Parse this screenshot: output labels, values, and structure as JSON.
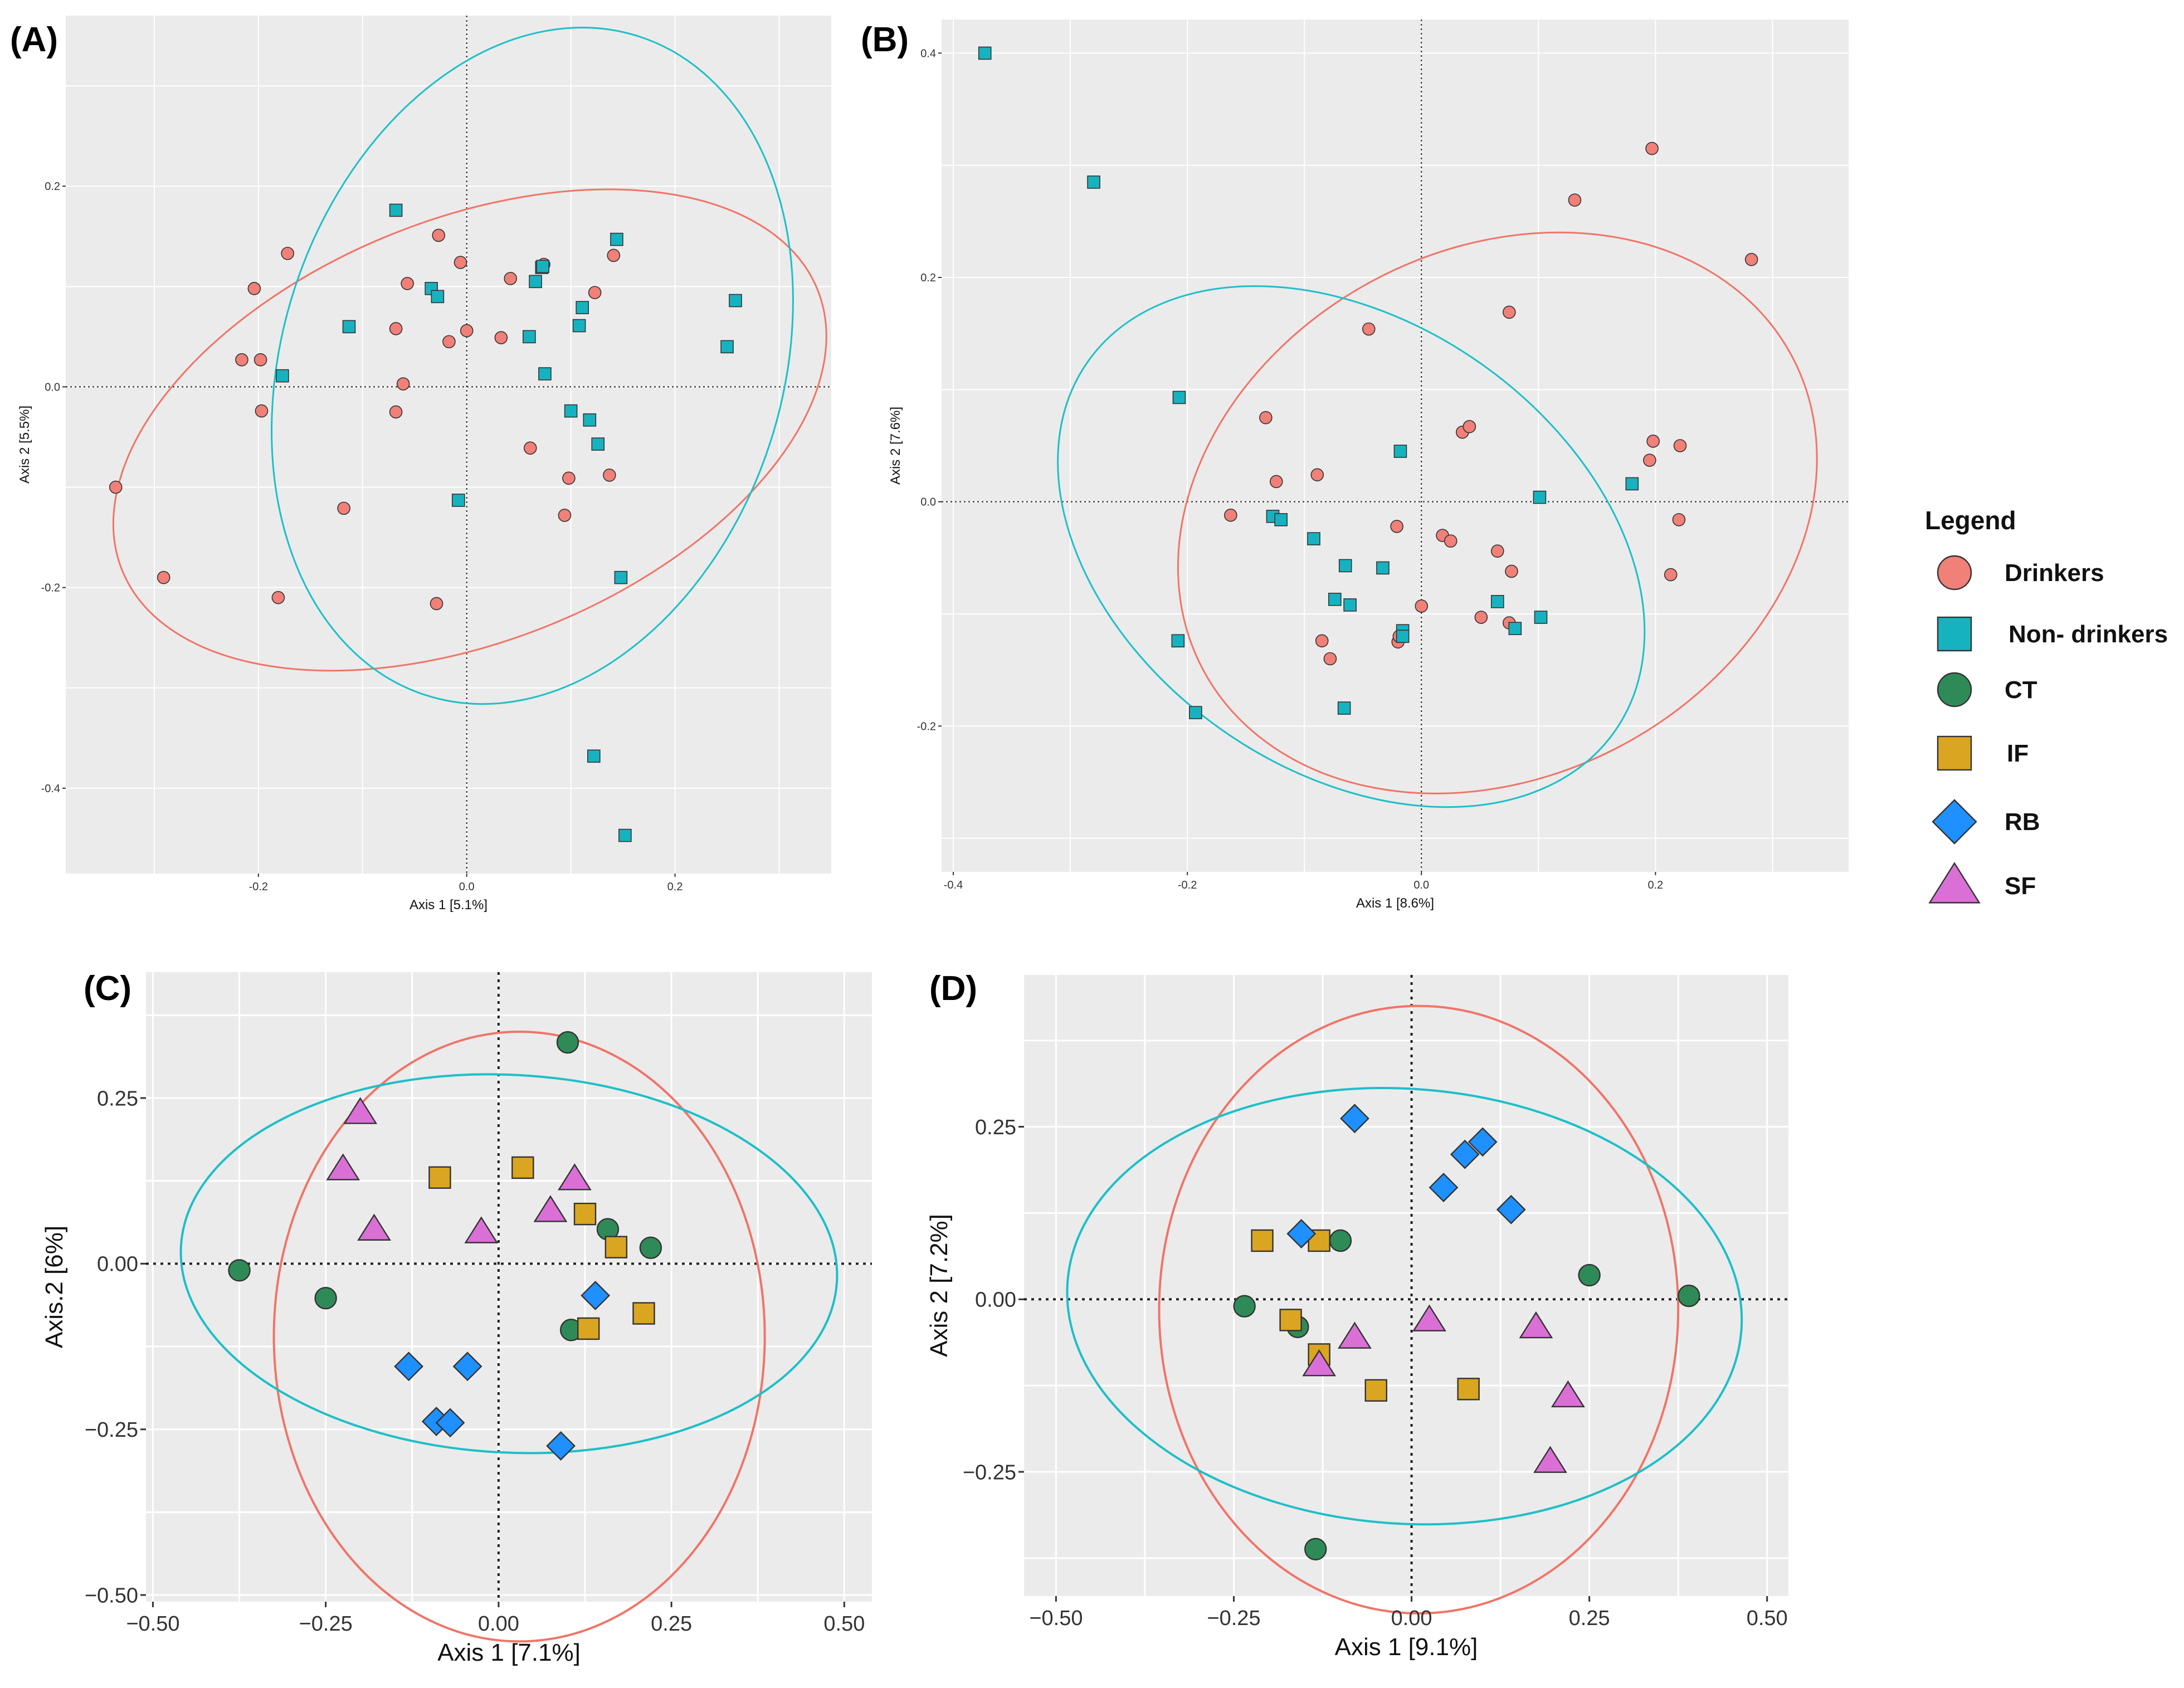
{
  "colors": {
    "panel_bg": "#ebebeb",
    "grid": "#ffffff",
    "drinkers": "#f08078",
    "drinkers_ellipse": "#f07468",
    "nondrinkers": "#17b2c0",
    "nondrinkers_ellipse": "#1dbfc8",
    "CT": "#2e8b57",
    "IF": "#daa520",
    "RB": "#1e90ff",
    "SF": "#da70d6",
    "outline": "#333333"
  },
  "legend": {
    "title": "Legend",
    "items": [
      {
        "label": "Drinkers",
        "shape": "circle",
        "color": "#f08078",
        "icon": "circle-icon"
      },
      {
        "label": "Non- drinkers",
        "shape": "square",
        "color": "#17b2c0",
        "icon": "square-icon"
      },
      {
        "label": "CT",
        "shape": "circle",
        "color": "#2e8b57",
        "icon": "circle-icon"
      },
      {
        "label": "IF",
        "shape": "square",
        "color": "#daa520",
        "icon": "square-icon"
      },
      {
        "label": "RB",
        "shape": "diamond",
        "color": "#1e90ff",
        "icon": "diamond-icon"
      },
      {
        "label": "SF",
        "shape": "triangle",
        "color": "#da70d6",
        "icon": "triangle-icon"
      }
    ]
  },
  "chart_data": [
    {
      "panel": "(A)",
      "type": "scatter",
      "xlabel": "Axis 1 [5.1%]",
      "ylabel": "Axis 2  [5.5%]",
      "xlim": [
        -0.385,
        0.35
      ],
      "ylim": [
        -0.485,
        0.37
      ],
      "xticks": [
        -0.2,
        0.0,
        0.2
      ],
      "xtick_labels": [
        "-0.2",
        "0.0",
        "0.2"
      ],
      "yticks": [
        -0.4,
        -0.2,
        0.0,
        0.2
      ],
      "ytick_labels": [
        "-0.4",
        "-0.2",
        "0.0",
        "0.2"
      ],
      "series": [
        {
          "name": "Drinkers",
          "shape": "circle",
          "color_key": "drinkers",
          "points": [
            [
              -0.337,
              -0.1
            ],
            [
              -0.291,
              -0.19
            ],
            [
              -0.216,
              0.027
            ],
            [
              -0.204,
              0.098
            ],
            [
              -0.198,
              0.027
            ],
            [
              -0.197,
              -0.024
            ],
            [
              -0.181,
              -0.21
            ],
            [
              -0.172,
              0.133
            ],
            [
              -0.118,
              -0.121
            ],
            [
              -0.068,
              0.058
            ],
            [
              -0.068,
              -0.025
            ],
            [
              -0.061,
              0.003
            ],
            [
              -0.057,
              0.103
            ],
            [
              -0.027,
              0.151
            ],
            [
              -0.017,
              0.045
            ],
            [
              -0.006,
              0.124
            ],
            [
              0.0,
              0.056
            ],
            [
              -0.029,
              -0.216
            ],
            [
              0.033,
              0.049
            ],
            [
              0.042,
              0.108
            ],
            [
              0.061,
              -0.061
            ],
            [
              0.074,
              0.122
            ],
            [
              0.094,
              -0.128
            ],
            [
              0.098,
              -0.091
            ],
            [
              0.123,
              0.094
            ],
            [
              0.137,
              -0.088
            ],
            [
              0.141,
              0.131
            ]
          ]
        },
        {
          "name": "Non- drinkers",
          "shape": "square",
          "color_key": "nondrinkers",
          "points": [
            [
              -0.177,
              0.011
            ],
            [
              -0.113,
              0.06
            ],
            [
              -0.068,
              0.176
            ],
            [
              -0.034,
              0.098
            ],
            [
              -0.028,
              0.09
            ],
            [
              -0.008,
              -0.113
            ],
            [
              0.06,
              0.05
            ],
            [
              0.066,
              0.105
            ],
            [
              0.072,
              0.119
            ],
            [
              0.075,
              0.013
            ],
            [
              0.1,
              -0.024
            ],
            [
              0.108,
              0.061
            ],
            [
              0.111,
              0.079
            ],
            [
              0.118,
              -0.033
            ],
            [
              0.126,
              -0.057
            ],
            [
              0.144,
              0.147
            ],
            [
              0.148,
              -0.19
            ],
            [
              0.122,
              -0.368
            ],
            [
              0.152,
              -0.447
            ],
            [
              0.25,
              0.04
            ],
            [
              0.258,
              0.086
            ],
            [
              0.073,
              0.12
            ]
          ]
        }
      ],
      "ellipses": [
        {
          "name": "Drinkers",
          "color_key": "drinkers_ellipse",
          "center": [
            0.003,
            -0.043
          ],
          "axes": [
            0.36,
            0.21
          ],
          "angle_deg": 22
        },
        {
          "name": "Non- drinkers",
          "color_key": "nondrinkers_ellipse",
          "center": [
            0.063,
            0.021
          ],
          "axes": [
            0.24,
            0.345
          ],
          "angle_deg": -18
        }
      ]
    },
    {
      "panel": "(B)",
      "type": "scatter",
      "xlabel": "Axis 1   [8.6%]",
      "ylabel": "Axis 2  [7.6%]",
      "xlim": [
        -0.41,
        0.365
      ],
      "ylim": [
        -0.33,
        0.43
      ],
      "xticks": [
        -0.4,
        -0.2,
        0.0,
        0.2
      ],
      "xtick_labels": [
        "-0.4",
        "-0.2",
        "0.0",
        "0.2"
      ],
      "yticks": [
        -0.2,
        0.0,
        0.2,
        0.4
      ],
      "ytick_labels": [
        "-0.2",
        "0.0",
        "0.2",
        "0.4"
      ],
      "series": [
        {
          "name": "Drinkers",
          "shape": "circle",
          "color_key": "drinkers",
          "points": [
            [
              -0.163,
              -0.012
            ],
            [
              -0.133,
              0.075
            ],
            [
              -0.124,
              0.018
            ],
            [
              -0.089,
              0.024
            ],
            [
              -0.085,
              -0.124
            ],
            [
              -0.078,
              -0.14
            ],
            [
              -0.045,
              0.154
            ],
            [
              -0.021,
              -0.022
            ],
            [
              -0.02,
              -0.125
            ],
            [
              -0.019,
              -0.12
            ],
            [
              0.0,
              -0.093
            ],
            [
              0.018,
              -0.03
            ],
            [
              0.025,
              -0.035
            ],
            [
              0.035,
              0.062
            ],
            [
              0.041,
              0.067
            ],
            [
              0.051,
              -0.103
            ],
            [
              0.065,
              -0.044
            ],
            [
              0.075,
              0.169
            ],
            [
              0.075,
              -0.108
            ],
            [
              0.077,
              -0.062
            ],
            [
              0.131,
              0.269
            ],
            [
              0.195,
              0.037
            ],
            [
              0.197,
              0.315
            ],
            [
              0.198,
              0.054
            ],
            [
              0.213,
              -0.065
            ],
            [
              0.22,
              -0.016
            ],
            [
              0.221,
              0.05
            ],
            [
              0.282,
              0.216
            ]
          ]
        },
        {
          "name": "Non- drinkers",
          "shape": "square",
          "color_key": "nondrinkers",
          "points": [
            [
              -0.373,
              0.4
            ],
            [
              -0.28,
              0.285
            ],
            [
              -0.207,
              0.093
            ],
            [
              -0.208,
              -0.124
            ],
            [
              -0.193,
              -0.188
            ],
            [
              -0.127,
              -0.013
            ],
            [
              -0.12,
              -0.016
            ],
            [
              -0.092,
              -0.033
            ],
            [
              -0.074,
              -0.087
            ],
            [
              -0.065,
              -0.057
            ],
            [
              -0.061,
              -0.092
            ],
            [
              -0.066,
              -0.184
            ],
            [
              -0.033,
              -0.059
            ],
            [
              -0.018,
              0.045
            ],
            [
              -0.016,
              -0.115
            ],
            [
              -0.016,
              -0.12
            ],
            [
              0.065,
              -0.089
            ],
            [
              0.08,
              -0.113
            ],
            [
              0.101,
              0.004
            ],
            [
              0.102,
              -0.103
            ],
            [
              0.18,
              0.016
            ]
          ]
        }
      ],
      "ellipses": [
        {
          "name": "Drinkers",
          "color_key": "drinkers_ellipse",
          "center": [
            0.065,
            -0.01
          ],
          "axes": [
            0.285,
            0.235
          ],
          "angle_deg": 28
        },
        {
          "name": "Non- drinkers",
          "color_key": "nondrinkers_ellipse",
          "center": [
            -0.06,
            -0.04
          ],
          "axes": [
            0.275,
            0.2
          ],
          "angle_deg": -35
        }
      ]
    },
    {
      "panel": "(C)",
      "type": "scatter",
      "xlabel": "Axis 1    [7.1%]",
      "ylabel": "Axis.2   [6%]",
      "xlim": [
        -0.51,
        0.54
      ],
      "ylim": [
        -0.51,
        0.44
      ],
      "xticks": [
        -0.5,
        -0.25,
        0.0,
        0.25,
        0.5
      ],
      "xtick_labels": [
        "−0.50",
        "−0.25",
        "0.00",
        "0.25",
        "0.50"
      ],
      "yticks": [
        -0.5,
        -0.25,
        0.0,
        0.25
      ],
      "ytick_labels": [
        "−0.50",
        "−0.25",
        "0.00",
        "0.25"
      ],
      "series": [
        {
          "name": "CT",
          "shape": "circle",
          "color_key": "CT",
          "points": [
            [
              -0.375,
              -0.01
            ],
            [
              -0.25,
              -0.052
            ],
            [
              0.1,
              0.334
            ],
            [
              0.158,
              0.052
            ],
            [
              0.22,
              0.024
            ],
            [
              0.105,
              -0.1
            ]
          ]
        },
        {
          "name": "IF",
          "shape": "square",
          "color_key": "IF",
          "points": [
            [
              -0.085,
              0.13
            ],
            [
              0.035,
              0.145
            ],
            [
              0.125,
              0.075
            ],
            [
              0.17,
              0.025
            ],
            [
              0.13,
              -0.098
            ],
            [
              0.21,
              -0.075
            ]
          ]
        },
        {
          "name": "RB",
          "shape": "diamond",
          "color_key": "RB",
          "points": [
            [
              -0.13,
              -0.155
            ],
            [
              -0.045,
              -0.155
            ],
            [
              -0.09,
              -0.238
            ],
            [
              -0.07,
              -0.24
            ],
            [
              0.14,
              -0.048
            ],
            [
              0.09,
              -0.275
            ]
          ]
        },
        {
          "name": "SF",
          "shape": "triangle",
          "color_key": "SF",
          "points": [
            [
              -0.2,
              0.228
            ],
            [
              -0.225,
              0.143
            ],
            [
              -0.18,
              0.052
            ],
            [
              -0.025,
              0.048
            ],
            [
              0.075,
              0.08
            ],
            [
              0.11,
              0.128
            ]
          ]
        }
      ],
      "ellipses": [
        {
          "name": "Drinkers",
          "color_key": "drinkers_ellipse",
          "center": [
            0.03,
            -0.11
          ],
          "axes": [
            0.355,
            0.46
          ],
          "angle_deg": 0
        },
        {
          "name": "Non- drinkers",
          "color_key": "nondrinkers_ellipse",
          "center": [
            0.015,
            0.0
          ],
          "axes": [
            0.475,
            0.285
          ],
          "angle_deg": -3
        }
      ]
    },
    {
      "panel": "(D)",
      "type": "scatter",
      "xlabel": "Axis 1 [9.1%]",
      "ylabel": "Axis 2   [7.2%]",
      "xlim": [
        -0.545,
        0.53
      ],
      "ylim": [
        -0.43,
        0.47
      ],
      "xticks": [
        -0.5,
        -0.25,
        0.0,
        0.25,
        0.5
      ],
      "xtick_labels": [
        "−0.50",
        "−0.25",
        "0.00",
        "0.25",
        "0.50"
      ],
      "yticks": [
        -0.25,
        0.0,
        0.25
      ],
      "ytick_labels": [
        "−0.25",
        "0.00",
        "0.25"
      ],
      "series": [
        {
          "name": "CT",
          "shape": "circle",
          "color_key": "CT",
          "points": [
            [
              -0.235,
              -0.01
            ],
            [
              -0.16,
              -0.04
            ],
            [
              -0.1,
              0.085
            ],
            [
              -0.135,
              -0.362
            ],
            [
              0.25,
              0.035
            ],
            [
              0.39,
              0.005
            ]
          ]
        },
        {
          "name": "IF",
          "shape": "square",
          "color_key": "IF",
          "points": [
            [
              -0.21,
              0.085
            ],
            [
              -0.13,
              0.085
            ],
            [
              -0.17,
              -0.03
            ],
            [
              -0.13,
              -0.08
            ],
            [
              -0.05,
              -0.132
            ],
            [
              0.08,
              -0.13
            ]
          ]
        },
        {
          "name": "RB",
          "shape": "diamond",
          "color_key": "RB",
          "points": [
            [
              -0.155,
              0.095
            ],
            [
              -0.08,
              0.262
            ],
            [
              0.045,
              0.162
            ],
            [
              0.075,
              0.21
            ],
            [
              0.1,
              0.228
            ],
            [
              0.14,
              0.13
            ]
          ]
        },
        {
          "name": "SF",
          "shape": "triangle",
          "color_key": "SF",
          "points": [
            [
              -0.13,
              -0.095
            ],
            [
              -0.08,
              -0.055
            ],
            [
              0.025,
              -0.03
            ],
            [
              0.175,
              -0.04
            ],
            [
              0.22,
              -0.14
            ],
            [
              0.195,
              -0.235
            ]
          ]
        }
      ],
      "ellipses": [
        {
          "name": "Drinkers",
          "color_key": "drinkers_ellipse",
          "center": [
            0.01,
            -0.015
          ],
          "axes": [
            0.365,
            0.44
          ],
          "angle_deg": 0
        },
        {
          "name": "Non- drinkers",
          "color_key": "nondrinkers_ellipse",
          "center": [
            -0.01,
            -0.01
          ],
          "axes": [
            0.475,
            0.315
          ],
          "angle_deg": -4
        }
      ]
    }
  ]
}
